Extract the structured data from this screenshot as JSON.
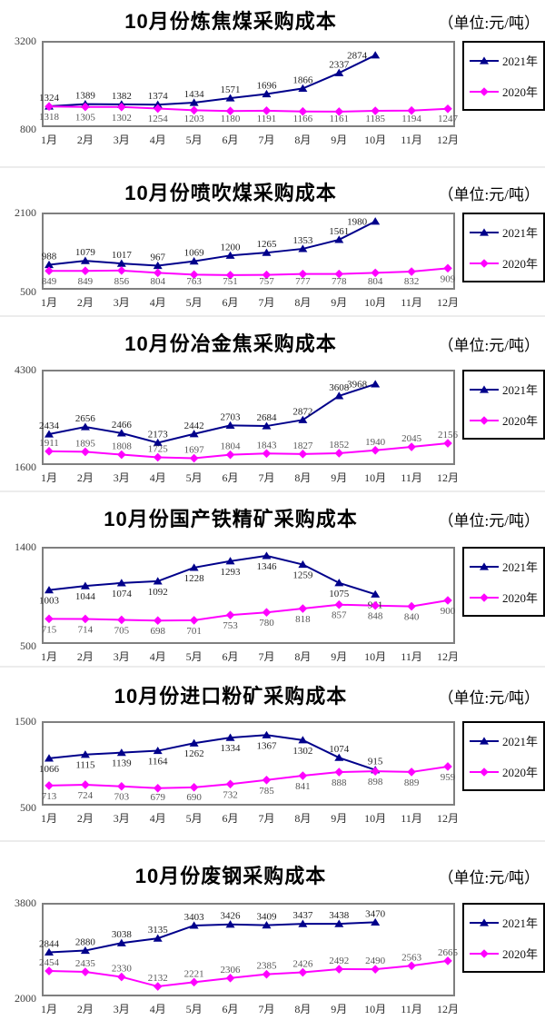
{
  "unit_note": "（单位:元/吨）",
  "months": [
    "1月",
    "2月",
    "3月",
    "4月",
    "5月",
    "6月",
    "7月",
    "8月",
    "9月",
    "10月",
    "11月",
    "12月"
  ],
  "colors": {
    "series_2021": "#00008B",
    "series_2020": "#FF00FF",
    "plot_border": "#7f7f7f",
    "legend_border": "#000000"
  },
  "chart_data": [
    {
      "type": "line",
      "title": "10月份炼焦煤采购成本",
      "unit_label": "（单位:元/吨）",
      "x": [
        "1月",
        "2月",
        "3月",
        "4月",
        "5月",
        "6月",
        "7月",
        "8月",
        "9月",
        "10月",
        "11月",
        "12月"
      ],
      "ylim": [
        800,
        3200
      ],
      "grid": false,
      "legend_position": "right",
      "series": [
        {
          "name": "2021年",
          "color": "#00008B",
          "marker": "triangle",
          "label_position": "above",
          "label_color": "#1f1f1f",
          "values": [
            1324,
            1389,
            1382,
            1374,
            1434,
            1571,
            1696,
            1866,
            2337,
            2874
          ]
        },
        {
          "name": "2020年",
          "color": "#FF00FF",
          "marker": "diamond",
          "label_position": "below",
          "label_color": "#575757",
          "values": [
            1318,
            1305,
            1302,
            1254,
            1203,
            1180,
            1191,
            1166,
            1161,
            1185,
            1194,
            1247
          ]
        }
      ]
    },
    {
      "type": "line",
      "title": "10月份喷吹煤采购成本",
      "unit_label": "（单位:元/吨）",
      "x": [
        "1月",
        "2月",
        "3月",
        "4月",
        "5月",
        "6月",
        "7月",
        "8月",
        "9月",
        "10月",
        "11月",
        "12月"
      ],
      "ylim": [
        500,
        2100
      ],
      "grid": false,
      "legend_position": "right",
      "series": [
        {
          "name": "2021年",
          "color": "#00008B",
          "marker": "triangle",
          "label_position": "above",
          "label_color": "#1f1f1f",
          "values": [
            988,
            1079,
            1017,
            967,
            1069,
            1200,
            1265,
            1353,
            1561,
            1980
          ]
        },
        {
          "name": "2020年",
          "color": "#FF00FF",
          "marker": "diamond",
          "label_position": "below",
          "label_color": "#575757",
          "values": [
            849,
            849,
            856,
            804,
            763,
            751,
            757,
            777,
            778,
            804,
            832,
            909
          ]
        }
      ]
    },
    {
      "type": "line",
      "title": "10月份冶金焦采购成本",
      "unit_label": "（单位:元/吨）",
      "x": [
        "1月",
        "2月",
        "3月",
        "4月",
        "5月",
        "6月",
        "7月",
        "8月",
        "9月",
        "10月",
        "11月",
        "12月"
      ],
      "ylim": [
        1600,
        4300
      ],
      "grid": false,
      "legend_position": "right",
      "series": [
        {
          "name": "2021年",
          "color": "#00008B",
          "marker": "triangle",
          "label_position": "above",
          "label_color": "#1f1f1f",
          "values": [
            2434,
            2656,
            2466,
            2173,
            2442,
            2703,
            2684,
            2872,
            3608,
            3968
          ]
        },
        {
          "name": "2020年",
          "color": "#FF00FF",
          "marker": "diamond",
          "label_position": "above",
          "label_color": "#575757",
          "values": [
            1911,
            1895,
            1808,
            1725,
            1697,
            1804,
            1843,
            1827,
            1852,
            1940,
            2045,
            2156
          ]
        }
      ]
    },
    {
      "type": "line",
      "title": "10月份国产铁精矿采购成本",
      "unit_label": "（单位:元/吨）",
      "x": [
        "1月",
        "2月",
        "3月",
        "4月",
        "5月",
        "6月",
        "7月",
        "8月",
        "9月",
        "10月",
        "11月",
        "12月"
      ],
      "ylim": [
        500,
        1400
      ],
      "grid": false,
      "legend_position": "right",
      "series": [
        {
          "name": "2021年",
          "color": "#00008B",
          "marker": "triangle",
          "label_position": "below",
          "label_color": "#1f1f1f",
          "values": [
            1003,
            1044,
            1074,
            1092,
            1228,
            1293,
            1346,
            1259,
            1075,
            961
          ]
        },
        {
          "name": "2020年",
          "color": "#FF00FF",
          "marker": "diamond",
          "label_position": "below",
          "label_color": "#575757",
          "values": [
            715,
            714,
            705,
            698,
            701,
            753,
            780,
            818,
            857,
            848,
            840,
            900
          ]
        }
      ]
    },
    {
      "type": "line",
      "title": "10月份进口粉矿采购成本",
      "unit_label": "（单位:元/吨）",
      "x": [
        "1月",
        "2月",
        "3月",
        "4月",
        "5月",
        "6月",
        "7月",
        "8月",
        "9月",
        "10月",
        "11月",
        "12月"
      ],
      "ylim": [
        500,
        1500
      ],
      "grid": false,
      "legend_position": "right",
      "series": [
        {
          "name": "2021年",
          "color": "#00008B",
          "marker": "triangle",
          "label_position": "below",
          "label_color": "#1f1f1f",
          "label_overrides": {
            "8": "above",
            "9": "above"
          },
          "values": [
            1066,
            1115,
            1139,
            1164,
            1262,
            1334,
            1367,
            1302,
            1074,
            915
          ]
        },
        {
          "name": "2020年",
          "color": "#FF00FF",
          "marker": "diamond",
          "label_position": "below",
          "label_color": "#575757",
          "values": [
            713,
            724,
            703,
            679,
            690,
            732,
            785,
            841,
            888,
            898,
            889,
            959
          ]
        }
      ]
    },
    {
      "type": "line",
      "title": "10月份废钢采购成本",
      "unit_label": "（单位:元/吨）",
      "x": [
        "1月",
        "2月",
        "3月",
        "4月",
        "5月",
        "6月",
        "7月",
        "8月",
        "9月",
        "10月",
        "11月",
        "12月"
      ],
      "ylim": [
        2000,
        3800
      ],
      "grid": false,
      "legend_position": "right",
      "series": [
        {
          "name": "2021年",
          "color": "#00008B",
          "marker": "triangle",
          "label_position": "above",
          "label_color": "#1f1f1f",
          "values": [
            2844,
            2880,
            3038,
            3135,
            3403,
            3426,
            3409,
            3437,
            3438,
            3470
          ]
        },
        {
          "name": "2020年",
          "color": "#FF00FF",
          "marker": "diamond",
          "label_position": "above",
          "label_color": "#575757",
          "values": [
            2454,
            2435,
            2330,
            2132,
            2221,
            2306,
            2385,
            2426,
            2492,
            2490,
            2563,
            2665
          ]
        }
      ]
    }
  ]
}
